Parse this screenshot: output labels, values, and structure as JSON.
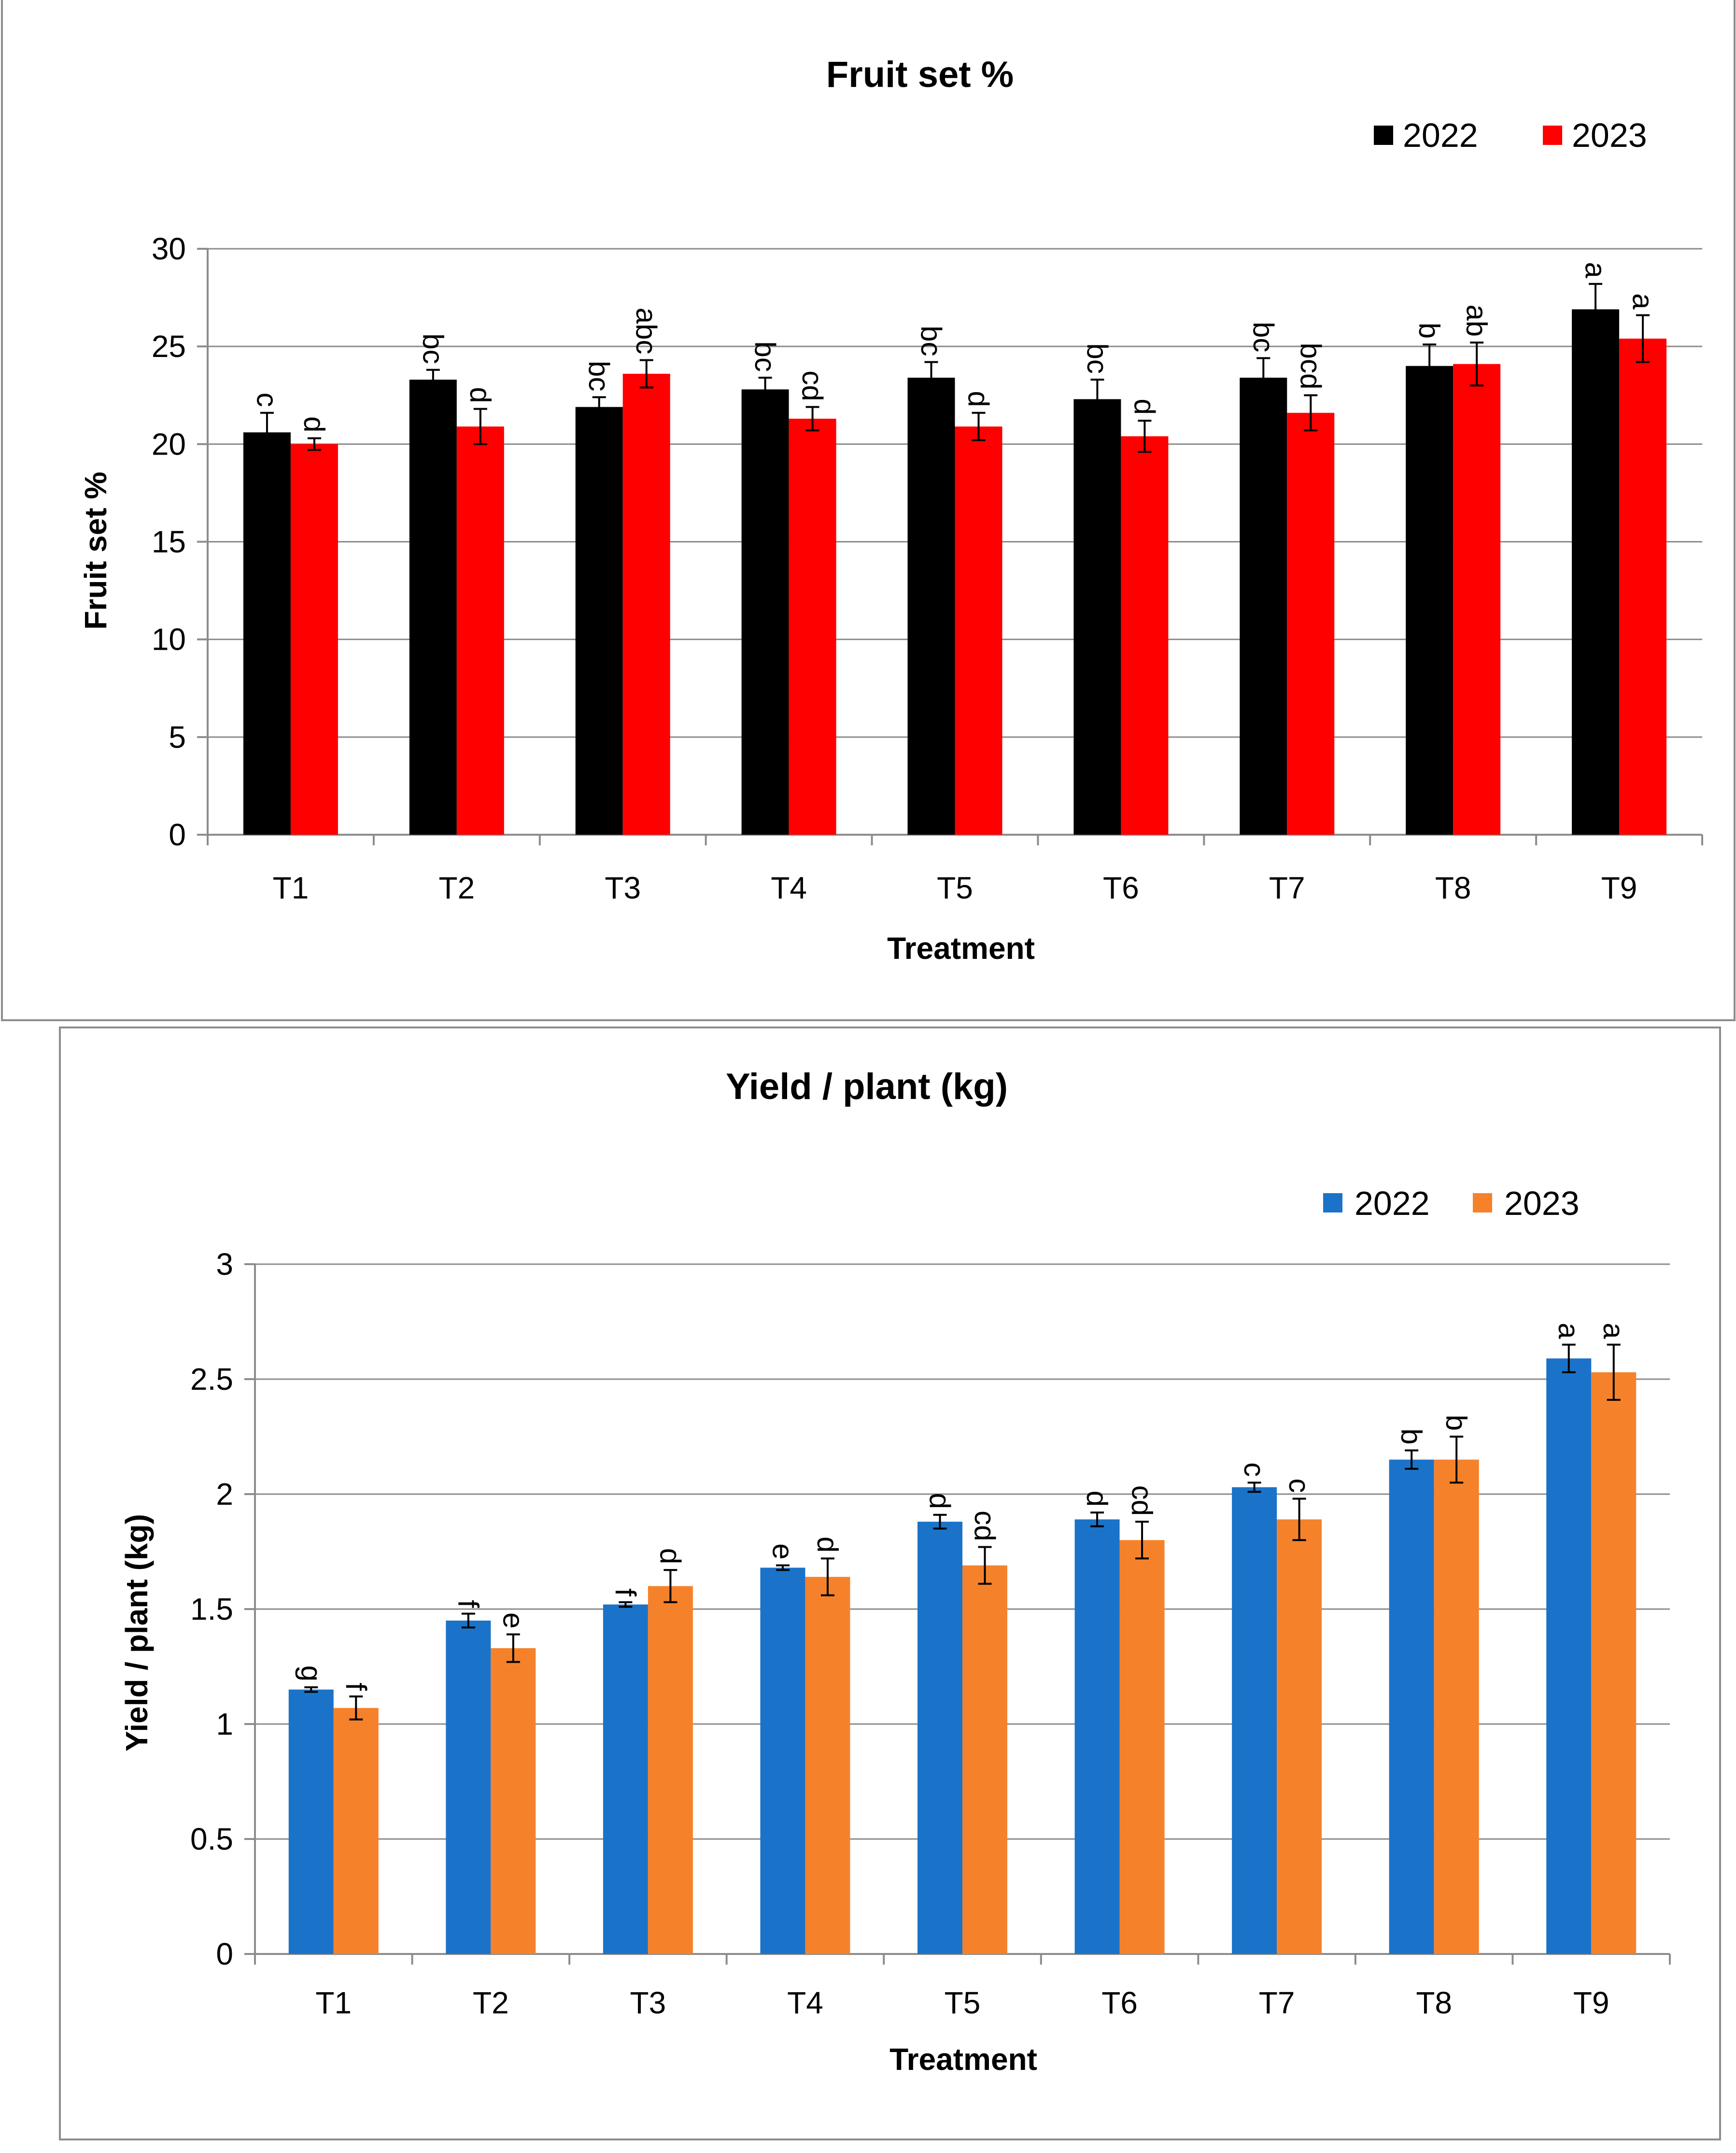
{
  "chart_data": [
    {
      "type": "bar",
      "title": "Fruit set %",
      "xlabel": "Treatment",
      "ylabel": "Fruit set %",
      "ylim": [
        0,
        30
      ],
      "yticks": [
        0,
        5,
        10,
        15,
        20,
        25,
        30
      ],
      "grid": true,
      "legend_position": "top-right",
      "categories": [
        "T1",
        "T2",
        "T3",
        "T4",
        "T5",
        "T6",
        "T7",
        "T8",
        "T9"
      ],
      "series": [
        {
          "name": "2022",
          "color": "#000000",
          "values": [
            20.6,
            23.3,
            21.9,
            22.8,
            23.4,
            22.3,
            23.4,
            24.0,
            26.9
          ],
          "errors": [
            1.0,
            0.5,
            0.5,
            0.6,
            0.8,
            1.0,
            1.0,
            1.1,
            1.3
          ],
          "labels": [
            "c",
            "bc",
            "bc",
            "bc",
            "bc",
            "bc",
            "bc",
            "b",
            "a"
          ]
        },
        {
          "name": "2023",
          "color": "#ff0000",
          "values": [
            20.0,
            20.9,
            23.6,
            21.3,
            20.9,
            20.4,
            21.6,
            24.1,
            25.4
          ],
          "errors": [
            0.3,
            0.9,
            0.7,
            0.6,
            0.7,
            0.8,
            0.9,
            1.1,
            1.2
          ],
          "labels": [
            "d",
            "d",
            "abc",
            "cd",
            "d",
            "d",
            "bcd",
            "ab",
            "a"
          ]
        }
      ]
    },
    {
      "type": "bar",
      "title": "Yield / plant (kg)",
      "xlabel": "Treatment",
      "ylabel": "Yield / plant (kg)",
      "ylim": [
        0,
        3
      ],
      "yticks": [
        0,
        0.5,
        1,
        1.5,
        2,
        2.5,
        3
      ],
      "grid": true,
      "legend_position": "top-right",
      "categories": [
        "T1",
        "T2",
        "T3",
        "T4",
        "T5",
        "T6",
        "T7",
        "T8",
        "T9"
      ],
      "series": [
        {
          "name": "2022",
          "color": "#1a73c8",
          "values": [
            1.15,
            1.45,
            1.52,
            1.68,
            1.88,
            1.89,
            2.03,
            2.15,
            2.59
          ],
          "errors": [
            0.01,
            0.03,
            0.01,
            0.01,
            0.03,
            0.03,
            0.02,
            0.04,
            0.06
          ],
          "labels": [
            "g",
            "f",
            "f",
            "e",
            "d",
            "d",
            "c",
            "b",
            "a"
          ]
        },
        {
          "name": "2023",
          "color": "#f5822a",
          "values": [
            1.07,
            1.33,
            1.6,
            1.64,
            1.69,
            1.8,
            1.89,
            2.15,
            2.53
          ],
          "errors": [
            0.05,
            0.06,
            0.07,
            0.08,
            0.08,
            0.08,
            0.09,
            0.1,
            0.12
          ],
          "labels": [
            "f",
            "e",
            "d",
            "d",
            "cd",
            "cd",
            "c",
            "b",
            "a"
          ]
        }
      ]
    }
  ]
}
